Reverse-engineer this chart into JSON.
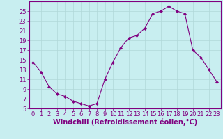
{
  "x": [
    0,
    1,
    2,
    3,
    4,
    5,
    6,
    7,
    8,
    9,
    10,
    11,
    12,
    13,
    14,
    15,
    16,
    17,
    18,
    19,
    20,
    21,
    22,
    23
  ],
  "y": [
    14.5,
    12.5,
    9.5,
    8.0,
    7.5,
    6.5,
    6.0,
    5.5,
    6.0,
    11.0,
    14.5,
    17.5,
    19.5,
    20.0,
    21.5,
    24.5,
    25.0,
    26.0,
    25.0,
    24.5,
    17.0,
    15.5,
    13.0,
    10.5
  ],
  "line_color": "#800080",
  "marker": "D",
  "marker_size": 2,
  "bg_color": "#c8eef0",
  "grid_color": "#b0d8d8",
  "xlabel": "Windchill (Refroidissement éolien,°C)",
  "ylim": [
    5,
    27
  ],
  "xlim_min": -0.5,
  "xlim_max": 23.5,
  "yticks": [
    5,
    7,
    9,
    11,
    13,
    15,
    17,
    19,
    21,
    23,
    25
  ],
  "xticks": [
    0,
    1,
    2,
    3,
    4,
    5,
    6,
    7,
    8,
    9,
    10,
    11,
    12,
    13,
    14,
    15,
    16,
    17,
    18,
    19,
    20,
    21,
    22,
    23
  ],
  "line_color_hex": "#800080",
  "tick_labelsize": 6,
  "xlabel_fontsize": 7
}
